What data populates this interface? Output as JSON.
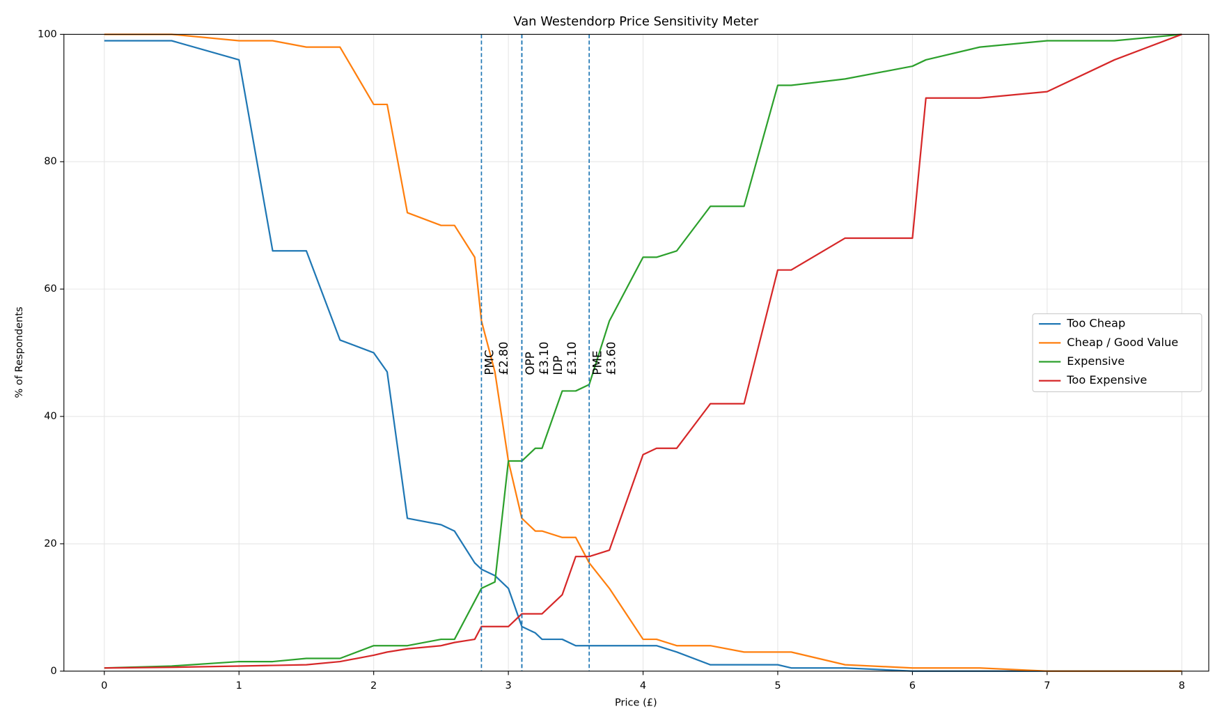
{
  "chart_data": {
    "type": "line",
    "title": "Van Westendorp Price Sensitivity Meter",
    "x_label": "Price (£)",
    "y_label": "% of Respondents",
    "x": [
      0,
      0.5,
      1,
      1.25,
      1.5,
      1.75,
      2,
      2.1,
      2.25,
      2.5,
      2.6,
      2.75,
      2.8,
      2.9,
      3,
      3.1,
      3.2,
      3.25,
      3.4,
      3.5,
      3.6,
      3.75,
      4,
      4.1,
      4.25,
      4.5,
      4.75,
      5,
      5.1,
      5.5,
      6,
      6.1,
      6.5,
      7,
      7.5,
      8
    ],
    "series": [
      {
        "name": "Too Cheap",
        "color": "#1f77b4",
        "values": [
          99,
          99,
          96,
          66,
          66,
          52,
          50,
          47,
          24,
          23,
          22,
          17,
          16,
          15,
          13,
          7,
          6,
          5,
          5,
          4,
          4,
          4,
          4,
          4,
          3,
          1,
          1,
          1,
          0.5,
          0.5,
          0,
          0,
          0,
          0,
          0,
          0
        ]
      },
      {
        "name": "Cheap / Good Value",
        "color": "#ff7f0e",
        "values": [
          100,
          100,
          99,
          99,
          98,
          98,
          89,
          89,
          72,
          70,
          70,
          65,
          55,
          47,
          33,
          24,
          22,
          22,
          21,
          21,
          17,
          13,
          5,
          5,
          4,
          4,
          3,
          3,
          3,
          1,
          0.5,
          0.5,
          0.5,
          0,
          0,
          0
        ]
      },
      {
        "name": "Expensive",
        "color": "#2ca02c",
        "values": [
          0.5,
          0.8,
          1.5,
          1.5,
          2,
          2,
          4,
          4,
          4,
          5,
          5,
          11,
          13,
          14,
          33,
          33,
          35,
          35,
          44,
          44,
          45,
          55,
          65,
          65,
          66,
          73,
          73,
          92,
          92,
          93,
          95,
          96,
          98,
          99,
          99,
          100
        ]
      },
      {
        "name": "Too Expensive",
        "color": "#d62728",
        "values": [
          0.5,
          0.6,
          0.8,
          0.9,
          1,
          1.5,
          2.5,
          3,
          3.5,
          4,
          4.5,
          5,
          7,
          7,
          7,
          9,
          9,
          9,
          12,
          18,
          18,
          19,
          34,
          35,
          35,
          42,
          42,
          63,
          63,
          68,
          68,
          90,
          90,
          91,
          96,
          100
        ]
      }
    ],
    "annotations": [
      {
        "label": "PMC",
        "x": 2.8,
        "x_label": "£2.80"
      },
      {
        "label": "OPP",
        "x": 3.1,
        "x_label": "£3.10"
      },
      {
        "label": "IDP",
        "x": 3.1,
        "x_label": "£3.10"
      },
      {
        "label": "PME",
        "x": 3.6,
        "x_label": "£3.60"
      }
    ],
    "annotation_color": "#1f77b4",
    "xlim": [
      -0.3,
      8.2
    ],
    "ylim": [
      0,
      100
    ],
    "xticks": [
      0,
      1,
      2,
      3,
      4,
      5,
      6,
      7,
      8
    ],
    "yticks": [
      0,
      20,
      40,
      60,
      80,
      100
    ],
    "grid": true,
    "legend": "center right"
  }
}
